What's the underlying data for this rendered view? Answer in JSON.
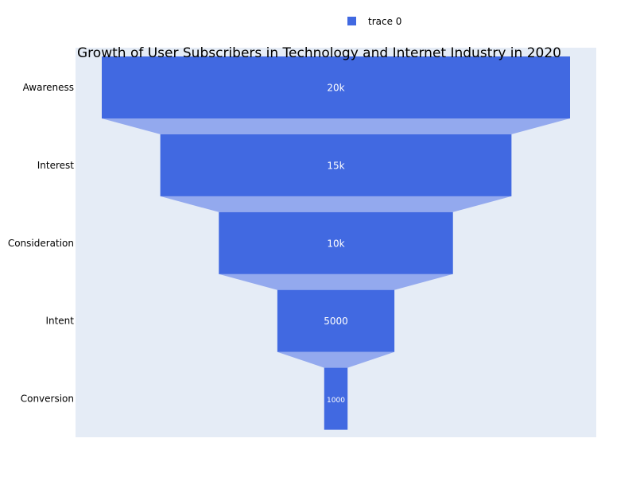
{
  "chart_data": {
    "type": "funnel",
    "title": "Growth of User Subscribers in Technology and Internet Industry in 2020",
    "categories": [
      "Awareness",
      "Interest",
      "Consideration",
      "Intent",
      "Conversion"
    ],
    "values": [
      20000,
      15000,
      10000,
      5000,
      1000
    ],
    "value_labels": [
      "20k",
      "15k",
      "10k",
      "5000",
      "1000"
    ],
    "series": [
      {
        "name": "trace 0",
        "values": [
          20000,
          15000,
          10000,
          5000,
          1000
        ]
      }
    ],
    "legend": {
      "placement": "top",
      "entries": [
        "trace 0"
      ]
    },
    "colors": {
      "bar": "#4169e1",
      "connector": "#93a9ee",
      "plot_background": "#e5ecf6",
      "page_background": "#ffffff"
    }
  }
}
